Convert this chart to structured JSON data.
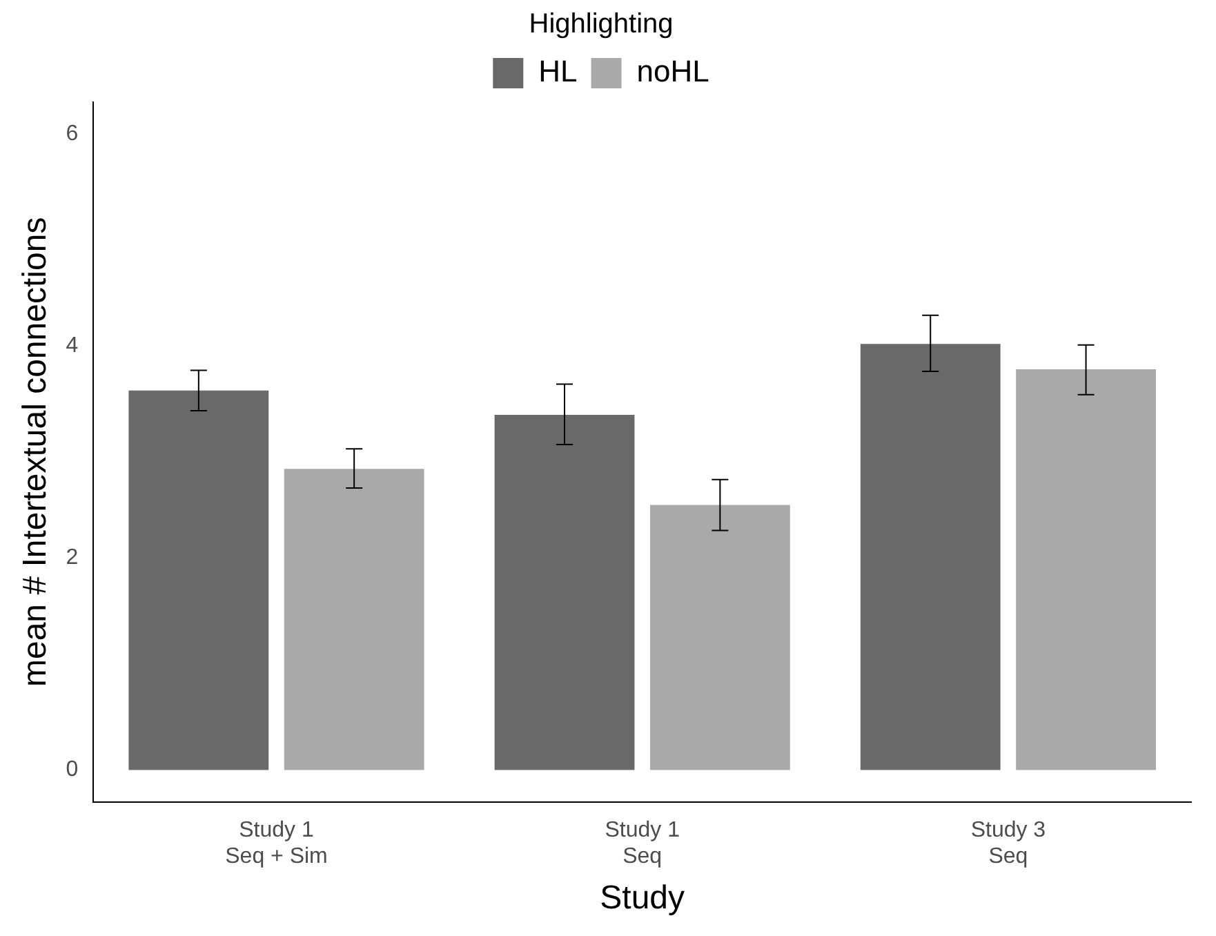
{
  "chart_data": {
    "type": "bar",
    "xlabel": "Study",
    "ylabel": "mean # Intertextual connections",
    "legend_title": "Highlighting",
    "categories": [
      "Study 1\nSeq + Sim",
      "Study 1\nSeq",
      "Study 3\nSeq"
    ],
    "series": [
      {
        "name": "HL",
        "color": "#696969",
        "values": [
          3.58,
          3.35,
          4.02
        ],
        "errors": [
          [
            3.39,
            3.77
          ],
          [
            3.07,
            3.64
          ],
          [
            3.76,
            4.29
          ]
        ]
      },
      {
        "name": "noHL",
        "color": "#a9a9a9",
        "values": [
          2.84,
          2.5,
          3.78
        ],
        "errors": [
          [
            2.66,
            3.03
          ],
          [
            2.26,
            2.74
          ],
          [
            3.54,
            4.01
          ]
        ]
      }
    ],
    "ylim": [
      -0.3,
      6.3
    ],
    "yticks": [
      0,
      2,
      4,
      6
    ],
    "grid": false,
    "legend": "top"
  }
}
